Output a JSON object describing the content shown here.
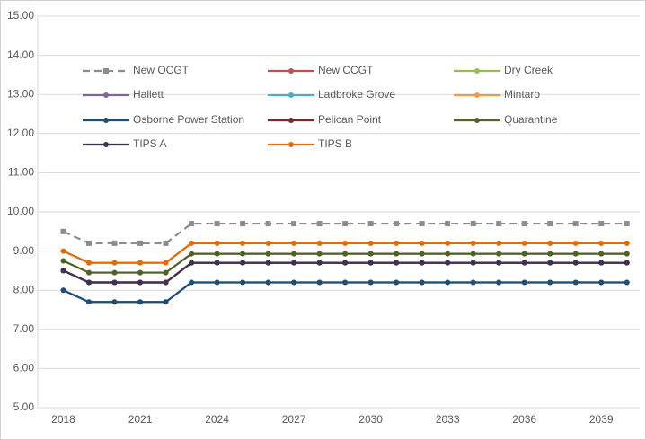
{
  "chart_data": {
    "type": "line",
    "x": [
      2018,
      2019,
      2020,
      2021,
      2022,
      2023,
      2024,
      2025,
      2026,
      2027,
      2028,
      2029,
      2030,
      2031,
      2032,
      2033,
      2034,
      2035,
      2036,
      2037,
      2038,
      2039,
      2040
    ],
    "xlim": [
      2017,
      2040.5
    ],
    "xticks": [
      2018,
      2021,
      2024,
      2027,
      2030,
      2033,
      2036,
      2039
    ],
    "ylim": [
      5,
      15
    ],
    "yticks": [
      {
        "value": 5,
        "label": "5.00"
      },
      {
        "value": 6,
        "label": "6.00"
      },
      {
        "value": 7,
        "label": "7.00"
      },
      {
        "value": 8,
        "label": "8.00"
      },
      {
        "value": 9,
        "label": "9.00"
      },
      {
        "value": 10,
        "label": "10.00"
      },
      {
        "value": 11,
        "label": "11.00"
      },
      {
        "value": 12,
        "label": "12.00"
      },
      {
        "value": 13,
        "label": "13.00"
      },
      {
        "value": 14,
        "label": "14.00"
      },
      {
        "value": 15,
        "label": "15.00"
      }
    ],
    "grid": true,
    "series": [
      {
        "name": "New OCGT",
        "color": "#8c8c8c",
        "dashed": true,
        "marker": "square",
        "values": [
          9.5,
          9.2,
          9.2,
          9.2,
          9.2,
          9.7,
          9.7,
          9.7,
          9.7,
          9.7,
          9.7,
          9.7,
          9.7,
          9.7,
          9.7,
          9.7,
          9.7,
          9.7,
          9.7,
          9.7,
          9.7,
          9.7,
          9.7
        ]
      },
      {
        "name": "New CCGT",
        "color": "#c0504d",
        "values": [
          8.5,
          8.2,
          8.2,
          8.2,
          8.2,
          8.7,
          8.7,
          8.7,
          8.7,
          8.7,
          8.7,
          8.7,
          8.7,
          8.7,
          8.7,
          8.7,
          8.7,
          8.7,
          8.7,
          8.7,
          8.7,
          8.7,
          8.7
        ]
      },
      {
        "name": "Dry Creek",
        "color": "#9bbb59",
        "values": [
          8.75,
          8.45,
          8.45,
          8.45,
          8.45,
          8.93,
          8.93,
          8.93,
          8.93,
          8.93,
          8.93,
          8.93,
          8.93,
          8.93,
          8.93,
          8.93,
          8.93,
          8.93,
          8.93,
          8.93,
          8.93,
          8.93,
          8.93
        ]
      },
      {
        "name": "Hallett",
        "color": "#8064a2",
        "values": [
          8.5,
          8.2,
          8.2,
          8.2,
          8.2,
          8.7,
          8.7,
          8.7,
          8.7,
          8.7,
          8.7,
          8.7,
          8.7,
          8.7,
          8.7,
          8.7,
          8.7,
          8.7,
          8.7,
          8.7,
          8.7,
          8.7,
          8.7
        ]
      },
      {
        "name": "Ladbroke Grove",
        "color": "#4bacc6",
        "values": [
          8,
          7.7,
          7.7,
          7.7,
          7.7,
          8.2,
          8.2,
          8.2,
          8.2,
          8.2,
          8.2,
          8.2,
          8.2,
          8.2,
          8.2,
          8.2,
          8.2,
          8.2,
          8.2,
          8.2,
          8.2,
          8.2,
          8.2
        ]
      },
      {
        "name": "Mintaro",
        "color": "#f79646",
        "values": [
          9,
          8.7,
          8.7,
          8.7,
          8.7,
          9.2,
          9.2,
          9.2,
          9.2,
          9.2,
          9.2,
          9.2,
          9.2,
          9.2,
          9.2,
          9.2,
          9.2,
          9.2,
          9.2,
          9.2,
          9.2,
          9.2,
          9.2
        ]
      },
      {
        "name": "Osborne Power Station",
        "color": "#1f4e79",
        "values": [
          8,
          7.7,
          7.7,
          7.7,
          7.7,
          8.2,
          8.2,
          8.2,
          8.2,
          8.2,
          8.2,
          8.2,
          8.2,
          8.2,
          8.2,
          8.2,
          8.2,
          8.2,
          8.2,
          8.2,
          8.2,
          8.2,
          8.2
        ]
      },
      {
        "name": "Pelican Point",
        "color": "#772c2a",
        "values": [
          8.5,
          8.2,
          8.2,
          8.2,
          8.2,
          8.7,
          8.7,
          8.7,
          8.7,
          8.7,
          8.7,
          8.7,
          8.7,
          8.7,
          8.7,
          8.7,
          8.7,
          8.7,
          8.7,
          8.7,
          8.7,
          8.7,
          8.7
        ]
      },
      {
        "name": "Quarantine",
        "color": "#4f6228",
        "values": [
          8.75,
          8.45,
          8.45,
          8.45,
          8.45,
          8.93,
          8.93,
          8.93,
          8.93,
          8.93,
          8.93,
          8.93,
          8.93,
          8.93,
          8.93,
          8.93,
          8.93,
          8.93,
          8.93,
          8.93,
          8.93,
          8.93,
          8.93
        ]
      },
      {
        "name": "TIPS A",
        "color": "#3f3151",
        "values": [
          8.5,
          8.2,
          8.2,
          8.2,
          8.2,
          8.7,
          8.7,
          8.7,
          8.7,
          8.7,
          8.7,
          8.7,
          8.7,
          8.7,
          8.7,
          8.7,
          8.7,
          8.7,
          8.7,
          8.7,
          8.7,
          8.7,
          8.7
        ]
      },
      {
        "name": "TIPS B",
        "color": "#e36c09",
        "values": [
          9,
          8.7,
          8.7,
          8.7,
          8.7,
          9.2,
          9.2,
          9.2,
          9.2,
          9.2,
          9.2,
          9.2,
          9.2,
          9.2,
          9.2,
          9.2,
          9.2,
          9.2,
          9.2,
          9.2,
          9.2,
          9.2,
          9.2
        ]
      }
    ]
  }
}
